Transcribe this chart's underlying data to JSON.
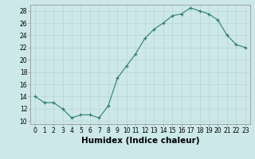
{
  "x": [
    0,
    1,
    2,
    3,
    4,
    5,
    6,
    7,
    8,
    9,
    10,
    11,
    12,
    13,
    14,
    15,
    16,
    17,
    18,
    19,
    20,
    21,
    22,
    23
  ],
  "y": [
    14,
    13,
    13,
    12,
    10.5,
    11,
    11,
    10.5,
    12.5,
    17,
    19,
    21,
    23.5,
    25,
    26,
    27.2,
    27.5,
    28.5,
    28,
    27.5,
    26.5,
    24,
    22.5,
    22
  ],
  "line_color": "#2e7d6e",
  "marker": "+",
  "bg_color": "#cce8e8",
  "grid_color": "#b8d4d4",
  "xlabel": "Humidex (Indice chaleur)",
  "xlim": [
    -0.5,
    23.5
  ],
  "ylim": [
    9.5,
    29.0
  ],
  "yticks": [
    10,
    12,
    14,
    16,
    18,
    20,
    22,
    24,
    26,
    28
  ],
  "xticks": [
    0,
    1,
    2,
    3,
    4,
    5,
    6,
    7,
    8,
    9,
    10,
    11,
    12,
    13,
    14,
    15,
    16,
    17,
    18,
    19,
    20,
    21,
    22,
    23
  ],
  "tick_fontsize": 5.5,
  "label_fontsize": 7.5
}
